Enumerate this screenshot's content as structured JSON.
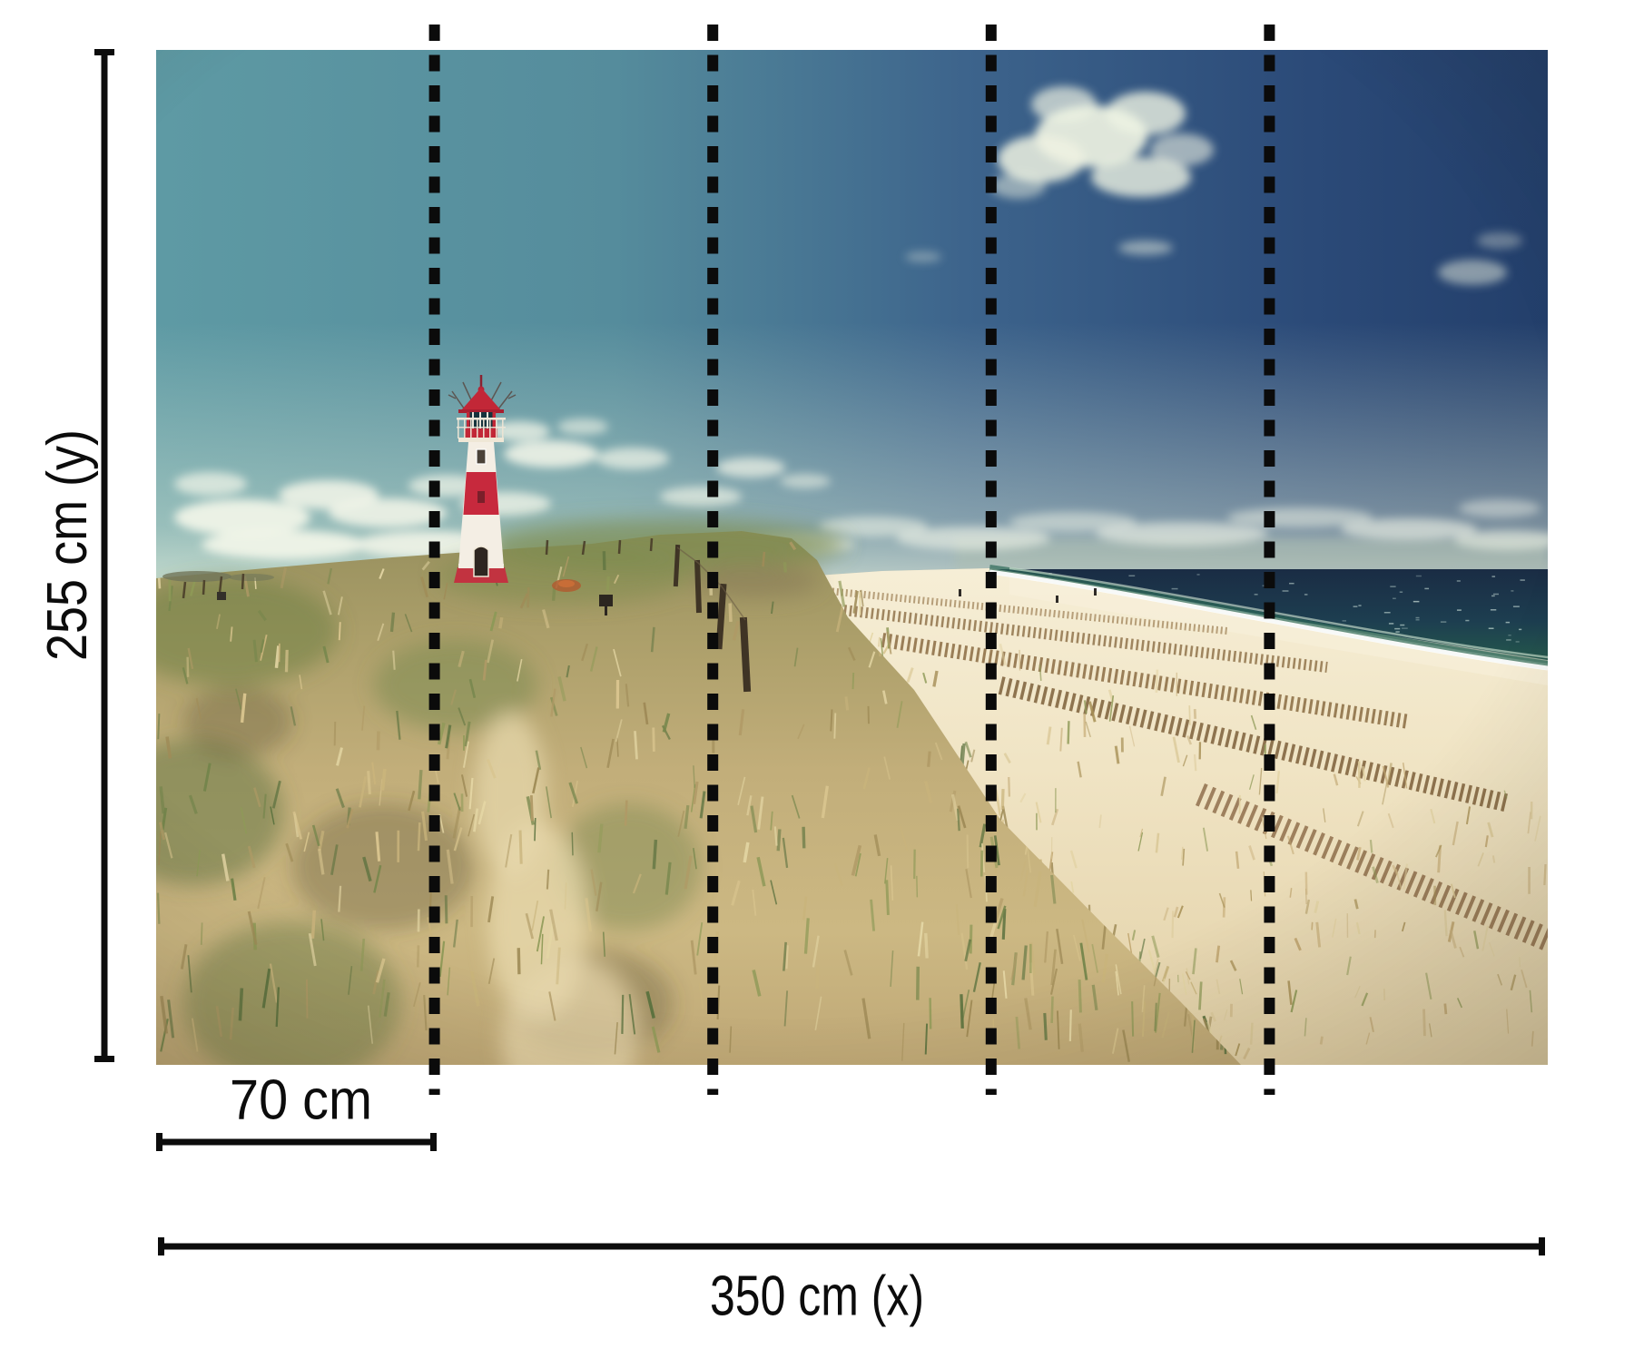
{
  "labels": {
    "height": "255 cm (y)",
    "panel_width": "70 cm",
    "total_width": "350 cm (x)"
  },
  "mural": {
    "panel_count": 5,
    "panel_separator_lines": 4,
    "subject": "lighthouse-beach-dune-scene"
  },
  "colors": {
    "ink": "#0c0c0c",
    "background": "#ffffff",
    "sky_left_teal": "#5e9aa4",
    "sky_right_navy": "#233f6b",
    "horizon_haze": "#e9f1dd",
    "sea_dark": "#1a2c44",
    "sea_green": "#255a4c",
    "surf_foam": "#ffffff",
    "sand": "#efe3c2",
    "dune_straw": "#c2ae7a",
    "grass_green": "#6d7f46",
    "lighthouse_red": "#c32738",
    "lighthouse_white": "#f4eee4",
    "fence_brown": "#8a6b42"
  }
}
